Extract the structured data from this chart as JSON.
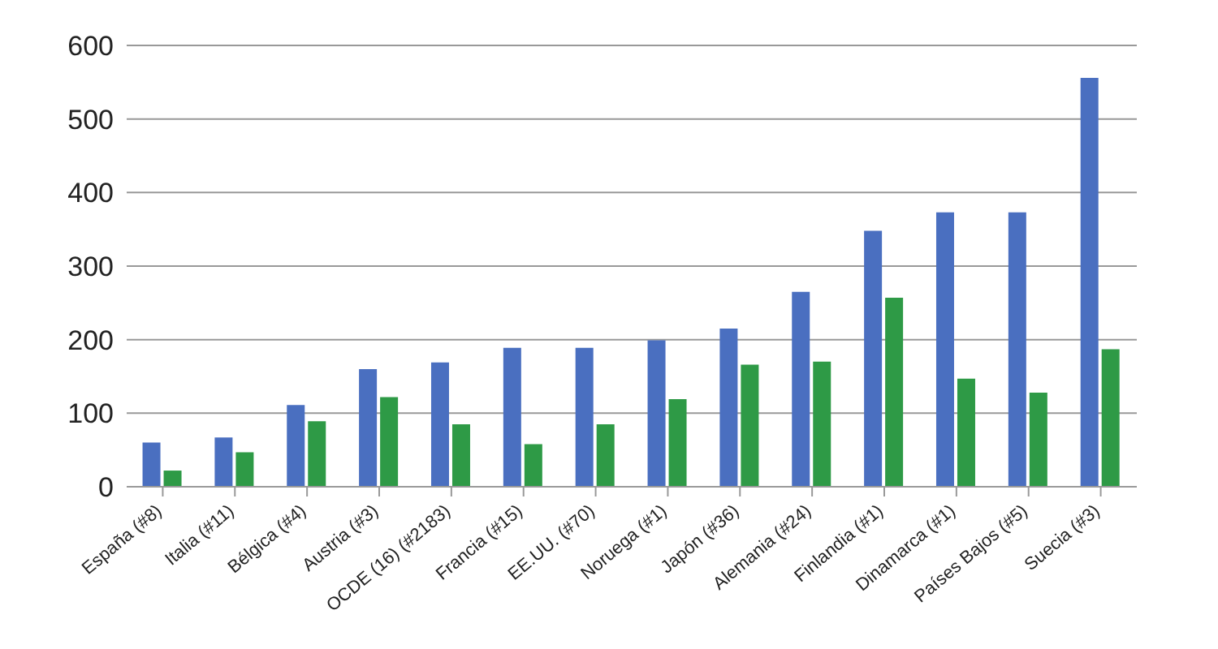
{
  "chart_data": {
    "type": "bar",
    "categories": [
      "España (#8)",
      "Italia (#11)",
      "Bélgica (#4)",
      "Austria (#3)",
      "OCDE (16) (#2183)",
      "Francia (#15)",
      "EE.UU. (#70)",
      "Noruega (#1)",
      "Japón (#36)",
      "Alemania (#24)",
      "Finlandia (#1)",
      "Dinamarca (#1)",
      "Países Bajos (#5)",
      "Suecia (#3)"
    ],
    "series": [
      {
        "color": "#4a6fc0",
        "values": [
          60,
          67,
          111,
          160,
          169,
          189,
          189,
          199,
          215,
          265,
          348,
          373,
          373,
          556
        ]
      },
      {
        "color": "#2e9a46",
        "values": [
          22,
          47,
          89,
          122,
          85,
          58,
          85,
          119,
          166,
          170,
          257,
          147,
          128,
          187
        ]
      }
    ],
    "ylim": [
      0,
      600
    ],
    "yticks": [
      0,
      100,
      200,
      300,
      400,
      500,
      600
    ],
    "grid": "y"
  }
}
